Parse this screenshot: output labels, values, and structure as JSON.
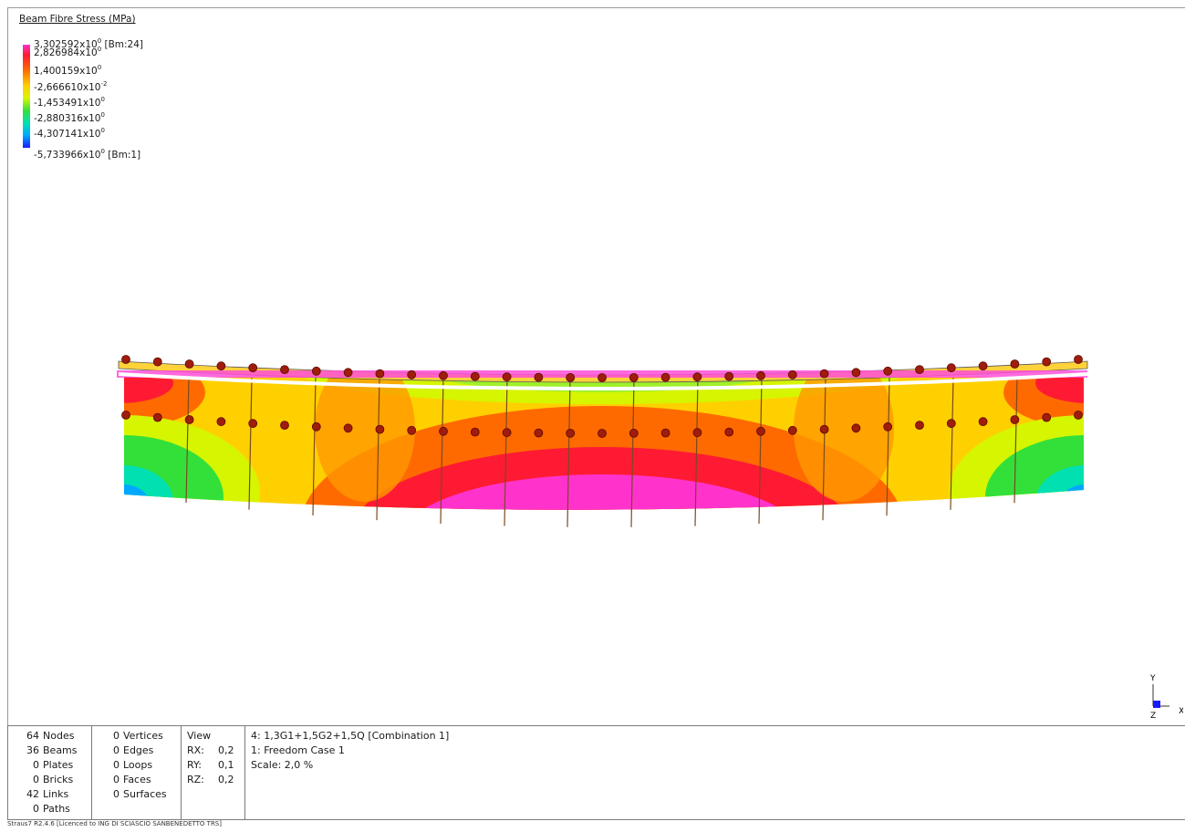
{
  "legend": {
    "title": "Beam Fibre Stress  (MPa)",
    "max_label": "[Bm:24]",
    "min_label": "[Bm:1]",
    "entries": [
      {
        "mantissa": "3,302592x10",
        "exp": "0",
        "suffix": " [Bm:24]"
      },
      {
        "mantissa": "2,826984x10",
        "exp": "0",
        "suffix": ""
      },
      {
        "mantissa": "1,400159x10",
        "exp": "0",
        "suffix": ""
      },
      {
        "mantissa": "-2,666610x10",
        "exp": "-2",
        "suffix": ""
      },
      {
        "mantissa": "-1,453491x10",
        "exp": "0",
        "suffix": ""
      },
      {
        "mantissa": "-2,880316x10",
        "exp": "0",
        "suffix": ""
      },
      {
        "mantissa": "-4,307141x10",
        "exp": "0",
        "suffix": ""
      },
      {
        "mantissa": "-5,733966x10",
        "exp": "0",
        "suffix": " [Bm:1]"
      }
    ],
    "colors": [
      "#ff33cc",
      "#ff1a33",
      "#ff6a00",
      "#ffd000",
      "#d6f500",
      "#33e03a",
      "#00e0b0",
      "#00a8ff",
      "#1a1aff"
    ]
  },
  "triad": {
    "y": "Y",
    "x": "X",
    "z": "Z"
  },
  "stats": {
    "entities": [
      {
        "count": "64",
        "label": "Nodes"
      },
      {
        "count": "36",
        "label": "Beams"
      },
      {
        "count": "0",
        "label": "Plates"
      },
      {
        "count": "0",
        "label": "Bricks"
      },
      {
        "count": "42",
        "label": "Links"
      },
      {
        "count": "0",
        "label": "Paths"
      }
    ],
    "geometry": [
      {
        "count": "0",
        "label": "Vertices"
      },
      {
        "count": "0",
        "label": "Edges"
      },
      {
        "count": "0",
        "label": "Loops"
      },
      {
        "count": "0",
        "label": "Faces"
      },
      {
        "count": "0",
        "label": "Surfaces"
      }
    ],
    "view": {
      "title": "View",
      "rows": [
        {
          "axis": "RX:",
          "value": "0,2"
        },
        {
          "axis": "RY:",
          "value": "0,1"
        },
        {
          "axis": "RZ:",
          "value": "0,2"
        }
      ]
    },
    "case": {
      "combination": "4: 1,3G1+1,5G2+1,5Q [Combination 1]",
      "freedom": "1: Freedom Case 1",
      "scale": "Scale:  2,0 %"
    }
  },
  "footer": "Straus7 R2.4.6 [Licenced to ING DI SCIASCIO SANBENEDETTO TRS]",
  "model": {
    "node_color": "#a01c0c",
    "top_node_count": 31,
    "mid_node_count": 31
  }
}
